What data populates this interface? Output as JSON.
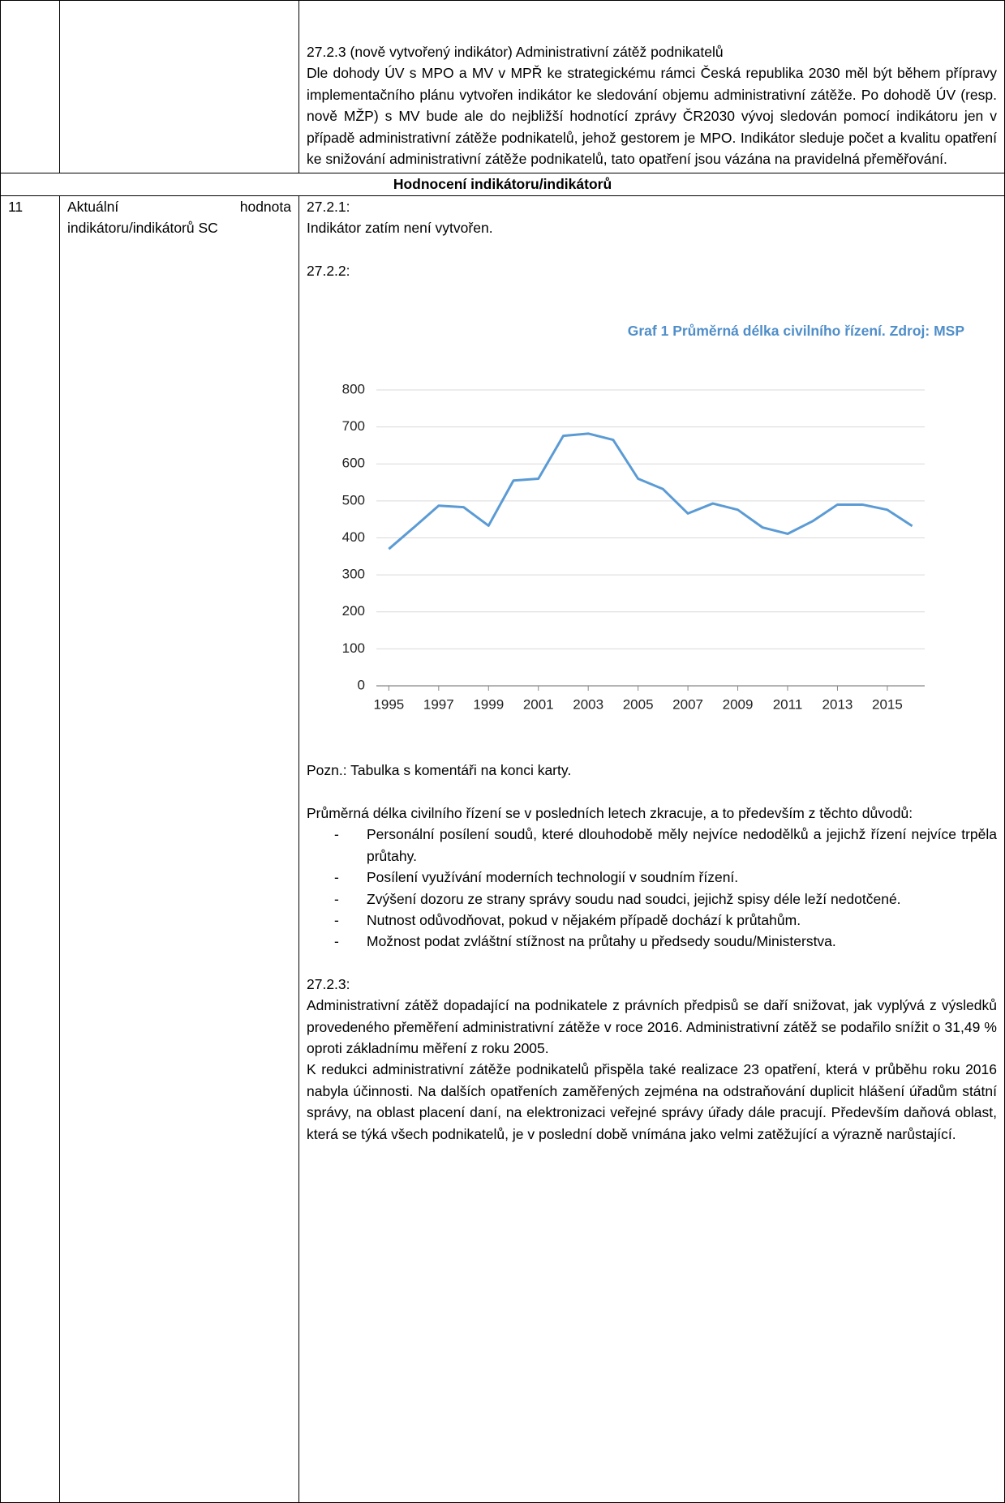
{
  "intro": {
    "heading": "27.2.3 (nově vytvořený indikátor) Administrativní zátěž podnikatelů",
    "text": "Dle dohody ÚV s MPO a MV v MPŘ ke strategickému rámci Česká republika 2030 měl být během přípravy implementačního plánu vytvořen indikátor ke sledování objemu administrativní zátěže. Po dohodě ÚV (resp. nově MŽP) s MV bude ale do nejbližší hodnotící zprávy ČR2030 vývoj sledován pomocí indikátoru jen v případě administrativní zátěže podnikatelů, jehož gestorem je MPO. Indikátor sleduje počet a kvalitu opatření ke snižování administrativní zátěže podnikatelů, tato opatření jsou vázána na pravidelná přeměřování."
  },
  "section_header": "Hodnocení indikátoru/indikátorů",
  "row": {
    "number": "11",
    "label": "Aktuální hodnota indikátoru/indikátorů SC",
    "s1_heading": "27.2.1:",
    "s1_text": "Indikátor zatím není vytvořen.",
    "s2_heading": "27.2.2:",
    "note": "Pozn.: Tabulka s komentáři na konci karty.",
    "s2_text": "Průměrná délka civilního řízení se v posledních letech zkracuje, a to především z těchto důvodů:",
    "bullet_marker": "-",
    "bullets": [
      "Personální posílení soudů, které dlouhodobě měly nejvíce nedodělků a jejichž řízení nejvíce trpěla průtahy.",
      "Posílení využívání moderních technologií v soudním řízení.",
      "Zvýšení dozoru ze strany správy soudu nad soudci, jejichž spisy déle leží nedotčené.",
      "Nutnost odůvodňovat, pokud v nějakém případě dochází k průtahům.",
      "Možnost podat zvláštní stížnost na průtahy u předsedy soudu/Ministerstva."
    ],
    "s3_heading": "27.2.3:",
    "s3_paragraphs": [
      "Administrativní zátěž dopadající na podnikatele z právních předpisů se daří snižovat, jak vyplývá z výsledků provedeného přeměření administrativní zátěže v roce 2016. Administrativní zátěž se podařilo snížit o 31,49 % oproti základnímu měření z roku 2005.",
      "K redukci administrativní zátěže podnikatelů přispěla také realizace 23 opatření, která v průběhu roku 2016 nabyla účinnosti. Na dalších opatřeních zaměřených zejména na odstraňování duplicit hlášení úřadům státní správy, na oblast placení daní, na elektronizaci veřejné správy úřady dále pracují. Především daňová oblast, která se týká všech podnikatelů, je v poslední době vnímána jako velmi zatěžující a výrazně narůstající."
    ]
  },
  "chart_data": {
    "type": "line",
    "title": "Graf 1 Průměrná délka civilního řízení. Zdroj: MSP",
    "x": [
      1995,
      1996,
      1997,
      1998,
      1999,
      2000,
      2001,
      2002,
      2003,
      2004,
      2005,
      2006,
      2007,
      2008,
      2009,
      2010,
      2011,
      2012,
      2013,
      2014,
      2015,
      2016
    ],
    "values": [
      370,
      428,
      487,
      483,
      433,
      555,
      560,
      676,
      682,
      665,
      560,
      532,
      466,
      493,
      476,
      428,
      411,
      445,
      490,
      490,
      476,
      432
    ],
    "color": "#5b9bd5",
    "xlim": [
      1994.5,
      2016.5
    ],
    "xticks": [
      1995,
      1997,
      1999,
      2001,
      2003,
      2005,
      2007,
      2009,
      2011,
      2013,
      2015
    ],
    "ylim": [
      0,
      800
    ],
    "yticks": [
      0,
      100,
      200,
      300,
      400,
      500,
      600,
      700,
      800
    ],
    "grid": true
  }
}
